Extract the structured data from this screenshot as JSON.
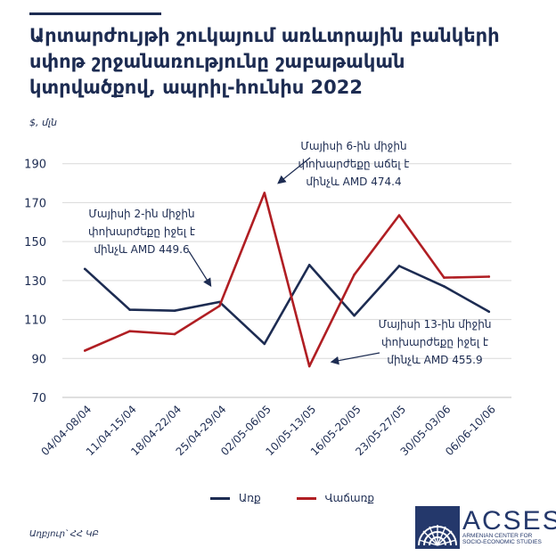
{
  "title": "Արտարժույթի շուկայում առևտրային բանկերի սփոթ շրջանառությունը շաբաթական կտրվածքով, ապրիլ-հունիս 2022",
  "unit": "$, մլն",
  "source": "Աղբյուր՝ ՀՀ ԿԲ",
  "logo": {
    "word": "ACSES",
    "sub": "ARMENIAN CENTER FOR SOCIO-ECONOMIC STUDIES"
  },
  "colors": {
    "buy": "#1d2c52",
    "sell": "#b01e23",
    "grid": "#d9d9d9",
    "text": "#1d2c52"
  },
  "chart_data": {
    "type": "line",
    "categories": [
      "04/04-08/04",
      "11/04-15/04",
      "18/04-22/04",
      "25/04-29/04",
      "02/05-06/05",
      "10/05-13/05",
      "16/05-20/05",
      "23/05-27/05",
      "30/05-03/06",
      "06/06-10/06"
    ],
    "series": [
      {
        "name": "Առք",
        "color": "#1d2c52",
        "values": [
          136,
          115,
          114.5,
          119,
          97.5,
          138,
          112,
          137.5,
          127,
          114
        ]
      },
      {
        "name": "Վաճառք",
        "color": "#b01e23",
        "values": [
          94,
          104,
          102.5,
          117,
          175,
          86,
          133,
          163.5,
          131.5,
          132
        ]
      }
    ],
    "ylim": [
      70,
      210
    ],
    "yticks": [
      70,
      90,
      110,
      130,
      150,
      170,
      190
    ],
    "grid": true,
    "legend_position": "bottom",
    "annotations": [
      {
        "lines": [
          "Մայիսի 2-ին միջին",
          "փոխարժեքը իջել է",
          "մինչև AMD 449.6"
        ]
      },
      {
        "lines": [
          "Մայիսի 6-ին միջին",
          "փոխարժեքը աճել է",
          "մինչև AMD 474.4"
        ]
      },
      {
        "lines": [
          "Մայիսի 13-ին  միջին",
          "փոխարժեքը իջել է",
          "մինչև AMD 455.9"
        ]
      }
    ]
  }
}
